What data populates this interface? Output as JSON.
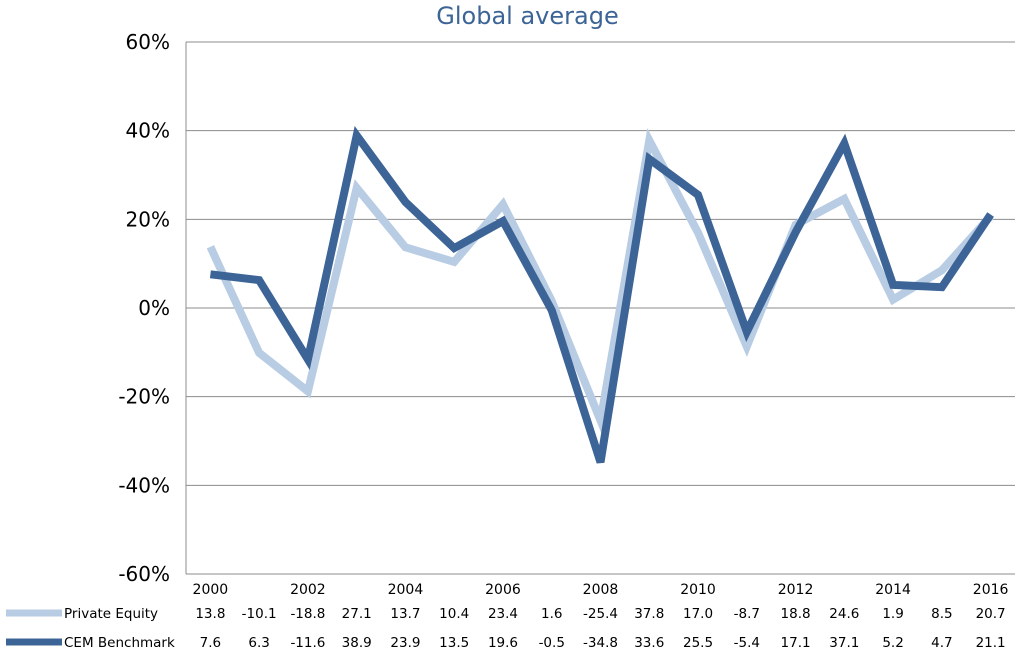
{
  "chart_data": {
    "type": "line",
    "title": "Global average",
    "xlabel": "",
    "ylabel": "",
    "x": [
      2000,
      2001,
      2002,
      2003,
      2004,
      2005,
      2006,
      2007,
      2008,
      2009,
      2010,
      2011,
      2012,
      2013,
      2014,
      2015,
      2016
    ],
    "x_tick_labels": [
      "2000",
      "2002",
      "2004",
      "2006",
      "2008",
      "2010",
      "2012",
      "2014",
      "2016"
    ],
    "x_tick_years": [
      2000,
      2002,
      2004,
      2006,
      2008,
      2010,
      2012,
      2014,
      2016
    ],
    "ylim": [
      -60,
      60
    ],
    "y_ticks": [
      -60,
      -40,
      -20,
      0,
      20,
      40,
      60
    ],
    "y_tick_labels": [
      "-60%",
      "-40%",
      "-20%",
      "0%",
      "20%",
      "40%",
      "60%"
    ],
    "grid": true,
    "legend_placement": "bottom (data table)",
    "series": [
      {
        "name": "Private Equity",
        "color": "#b8cce4",
        "values": [
          13.8,
          -10.1,
          -18.8,
          27.1,
          13.7,
          10.4,
          23.4,
          1.6,
          -25.4,
          37.8,
          17.0,
          -8.7,
          18.8,
          24.6,
          1.9,
          8.5,
          20.7
        ],
        "labels": [
          "13.8",
          "-10.1",
          "-18.8",
          "27.1",
          "13.7",
          "10.4",
          "23.4",
          "1.6",
          "-25.4",
          "37.8",
          "17.0",
          "-8.7",
          "18.8",
          "24.6",
          "1.9",
          "8.5",
          "20.7"
        ]
      },
      {
        "name": "CEM Benchmark",
        "color": "#3d6496",
        "values": [
          7.6,
          6.3,
          -11.6,
          38.9,
          23.9,
          13.5,
          19.6,
          -0.5,
          -34.8,
          33.6,
          25.5,
          -5.4,
          17.1,
          37.1,
          5.2,
          4.7,
          21.1
        ],
        "labels": [
          "7.6",
          "6.3",
          "-11.6",
          "38.9",
          "23.9",
          "13.5",
          "19.6",
          "-0.5",
          "-34.8",
          "33.6",
          "25.5",
          "-5.4",
          "17.1",
          "37.1",
          "5.2",
          "4.7",
          "21.1"
        ]
      }
    ]
  }
}
